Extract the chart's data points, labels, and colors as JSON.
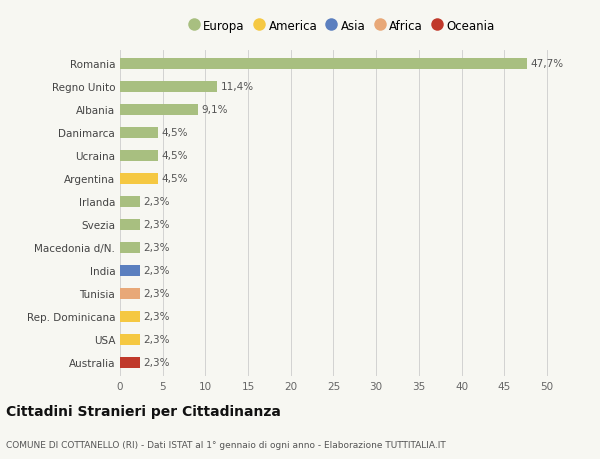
{
  "categories": [
    "Australia",
    "USA",
    "Rep. Dominicana",
    "Tunisia",
    "India",
    "Macedonia d/N.",
    "Svezia",
    "Irlanda",
    "Argentina",
    "Ucraina",
    "Danimarca",
    "Albania",
    "Regno Unito",
    "Romania"
  ],
  "values": [
    2.3,
    2.3,
    2.3,
    2.3,
    2.3,
    2.3,
    2.3,
    2.3,
    4.5,
    4.5,
    4.5,
    9.1,
    11.4,
    47.7
  ],
  "colors": [
    "#c0392b",
    "#f5c842",
    "#f5c842",
    "#e8a878",
    "#5b7fbf",
    "#a8bf80",
    "#a8bf80",
    "#a8bf80",
    "#f5c842",
    "#a8bf80",
    "#a8bf80",
    "#a8bf80",
    "#a8bf80",
    "#a8bf80"
  ],
  "labels": [
    "2,3%",
    "2,3%",
    "2,3%",
    "2,3%",
    "2,3%",
    "2,3%",
    "2,3%",
    "2,3%",
    "4,5%",
    "4,5%",
    "4,5%",
    "9,1%",
    "11,4%",
    "47,7%"
  ],
  "xlim": [
    0,
    52
  ],
  "xticks": [
    0,
    5,
    10,
    15,
    20,
    25,
    30,
    35,
    40,
    45,
    50
  ],
  "title": "Cittadini Stranieri per Cittadinanza",
  "subtitle": "COMUNE DI COTTANELLO (RI) - Dati ISTAT al 1° gennaio di ogni anno - Elaborazione TUTTITALIA.IT",
  "legend_items": [
    {
      "label": "Europa",
      "color": "#a8bf80"
    },
    {
      "label": "America",
      "color": "#f5c842"
    },
    {
      "label": "Asia",
      "color": "#5b7fbf"
    },
    {
      "label": "Africa",
      "color": "#e8a878"
    },
    {
      "label": "Oceania",
      "color": "#c0392b"
    }
  ],
  "background_color": "#f7f7f2",
  "bar_height": 0.5
}
